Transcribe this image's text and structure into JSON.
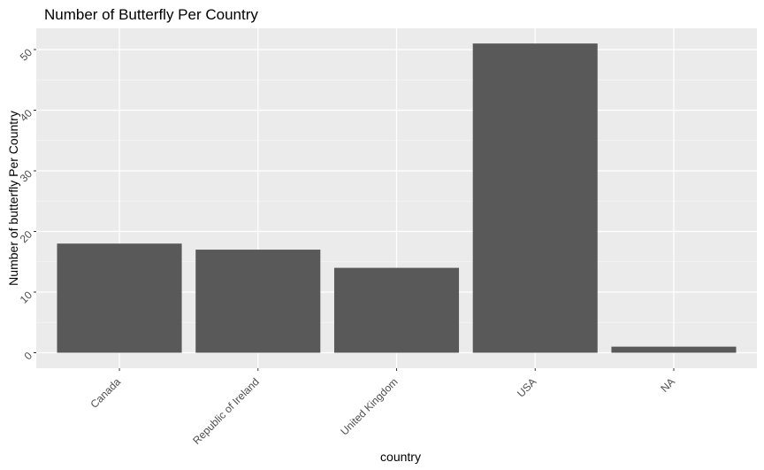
{
  "chart_data": {
    "type": "bar",
    "title": "Number of Butterfly Per Country",
    "xlabel": "country",
    "ylabel": "Number of butterfly Per Country",
    "categories": [
      "Canada",
      "Republic of Ireland",
      "United Kingdom",
      "USA",
      "NA"
    ],
    "values": [
      18,
      17,
      14,
      51,
      1
    ],
    "ylim": [
      0,
      53
    ],
    "yticks": [
      "0",
      "10",
      "20",
      "30",
      "40",
      "50"
    ],
    "ytick_values": [
      0,
      10,
      20,
      30,
      40,
      50
    ],
    "grid": true,
    "legend": "none",
    "colors": {
      "bar": "#595959",
      "panel_background": "#ebebeb",
      "grid_major": "#ffffff",
      "grid_minor": "#f5f5f5"
    }
  }
}
